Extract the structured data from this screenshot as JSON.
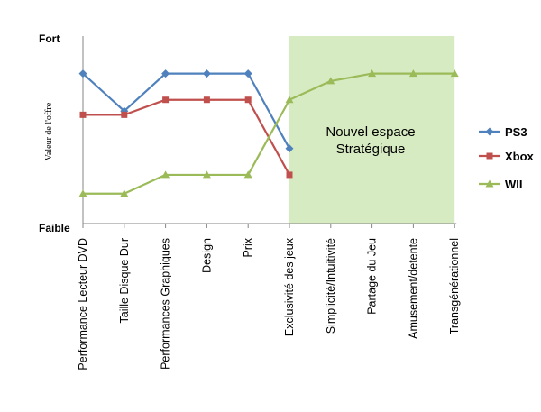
{
  "chart_data": {
    "type": "line",
    "categories": [
      "Performance Lecteur DVD",
      "Taille Disque Dur",
      "Performances Graphiques",
      "Design",
      "Prix",
      "Exclusivité des jeux",
      "Simplicité/Intuitivité",
      "Partage du Jeu",
      "Amusement/detente",
      "Transgénérationnel"
    ],
    "series": [
      {
        "name": "PS3",
        "color": "#4F81BD",
        "marker": "diamond",
        "values": [
          4,
          3,
          4,
          4,
          4,
          2,
          null,
          null,
          null,
          null
        ]
      },
      {
        "name": "Xbox",
        "color": "#C0504D",
        "marker": "square",
        "values": [
          2.9,
          2.9,
          3.3,
          3.3,
          3.3,
          1.3,
          null,
          null,
          null,
          null
        ]
      },
      {
        "name": "WII",
        "color": "#9BBB59",
        "marker": "triangle",
        "values": [
          0.8,
          0.8,
          1.3,
          1.3,
          1.3,
          3.3,
          3.8,
          4,
          4,
          4
        ]
      }
    ],
    "ylabel": "Valeur de l'offre",
    "y_top_label": "Fort",
    "y_bottom_label": "Faible",
    "ylim": [
      0,
      5
    ],
    "grid": false,
    "legend_position": "right",
    "highlight": {
      "label_line1": "Nouvel espace",
      "label_line2": "Stratégique",
      "from_category_index": 5,
      "to_category_index": 9,
      "color": "#D7EBC2"
    }
  }
}
